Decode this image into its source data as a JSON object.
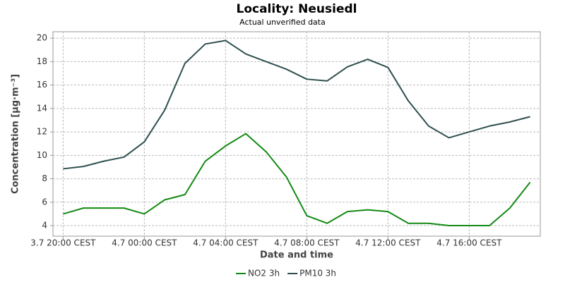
{
  "chart_data": {
    "type": "line",
    "title": "Locality: Neusiedl",
    "subtitle": "Actual unverified data",
    "x_label": "Date and time",
    "y_label": "Concentration [µg·m⁻³]",
    "categories": [
      "3.7 20:00 CEST",
      null,
      null,
      null,
      "4.7 00:00 CEST",
      null,
      null,
      null,
      "4.7 04:00 CEST",
      null,
      null,
      null,
      "4.7 08:00 CEST",
      null,
      null,
      null,
      "4.7 12:00 CEST",
      null,
      null,
      null,
      "4.7 16:00 CEST",
      null,
      null,
      null
    ],
    "series": [
      {
        "name": "NO2 3h",
        "color": "#138a13",
        "values": [
          5.0,
          5.5,
          5.5,
          5.5,
          5.0,
          6.2,
          6.65,
          9.5,
          10.8,
          11.85,
          10.3,
          8.15,
          4.85,
          4.2,
          5.2,
          5.35,
          5.2,
          4.2,
          4.2,
          4.0,
          4.0,
          4.0,
          5.5,
          7.7
        ]
      },
      {
        "name": "PM10 3h",
        "color": "#2f4f4f",
        "values": [
          8.85,
          9.05,
          9.5,
          9.85,
          11.15,
          13.85,
          17.85,
          19.5,
          19.8,
          18.65,
          18.0,
          17.35,
          16.5,
          16.35,
          17.55,
          18.2,
          17.5,
          14.65,
          12.5,
          11.5,
          12.0,
          12.5,
          12.85,
          13.3
        ]
      }
    ],
    "ylim": [
      3.1,
      20.55
    ],
    "yticks": [
      4,
      6,
      8,
      10,
      12,
      14,
      16,
      18,
      20
    ],
    "grid": true,
    "legend": "bottom"
  }
}
